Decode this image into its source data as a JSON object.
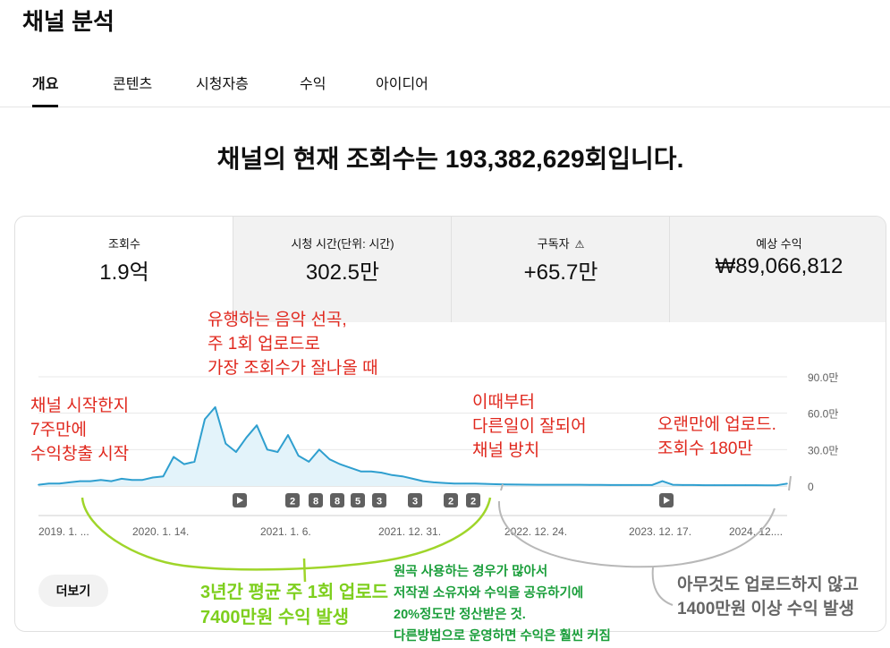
{
  "page": {
    "title": "채널 분석"
  },
  "tabs": [
    {
      "label": "개요",
      "active": true
    },
    {
      "label": "콘텐츠",
      "active": false
    },
    {
      "label": "시청자층",
      "active": false
    },
    {
      "label": "수익",
      "active": false
    },
    {
      "label": "아이디어",
      "active": false
    }
  ],
  "headline": "채널의 현재 조회수는 193,382,629회입니다.",
  "metrics": [
    {
      "label": "조회수",
      "value": "1.9억"
    },
    {
      "label": "시청 시간(단위: 시간)",
      "value": "302.5만"
    },
    {
      "label": "구독자",
      "value": "+65.7만",
      "icon": "warning-icon"
    },
    {
      "label": "예상 수익",
      "value": "₩89,066,812"
    }
  ],
  "more_button": "더보기",
  "colors": {
    "line": "#2f9fcf",
    "fill": "#e3f3fa",
    "red_note": "#e0281e",
    "lime_note": "#7ecf1e",
    "green_note": "#1a9e3a",
    "grey_note": "#666666"
  },
  "chart_data": {
    "type": "area",
    "series": [
      {
        "x": [
          "2019-01",
          "2019-02",
          "2019-03",
          "2019-04",
          "2019-05",
          "2019-06",
          "2019-07",
          "2019-08",
          "2019-09",
          "2019-10",
          "2019-11",
          "2019-12",
          "2020-01",
          "2020-02",
          "2020-03",
          "2020-04",
          "2020-05",
          "2020-06",
          "2020-07",
          "2020-08",
          "2020-09",
          "2020-10",
          "2020-11",
          "2020-12",
          "2021-01",
          "2021-02",
          "2021-03",
          "2021-04",
          "2021-05",
          "2021-06",
          "2021-07",
          "2021-08",
          "2021-09",
          "2021-10",
          "2021-11",
          "2021-12",
          "2022-01",
          "2022-02",
          "2022-03",
          "2022-04",
          "2022-05",
          "2022-06",
          "2022-07",
          "2022-08",
          "2022-09",
          "2022-10",
          "2022-11",
          "2022-12",
          "2023-01",
          "2023-02",
          "2023-03",
          "2023-04",
          "2023-05",
          "2023-06",
          "2023-07",
          "2023-08",
          "2023-09",
          "2023-10",
          "2023-11",
          "2023-12",
          "2024-01",
          "2024-02",
          "2024-03",
          "2024-04",
          "2024-05",
          "2024-06",
          "2024-07",
          "2024-08",
          "2024-09",
          "2024-10",
          "2024-11",
          "2024-12",
          "2025-01"
        ],
        "values": [
          1,
          2,
          2,
          3,
          4,
          4,
          5,
          4,
          6,
          5,
          5,
          7,
          8,
          24,
          18,
          20,
          55,
          65,
          35,
          28,
          40,
          50,
          30,
          28,
          42,
          25,
          20,
          30,
          22,
          18,
          15,
          12,
          12,
          11,
          9,
          8,
          6,
          4,
          3,
          2.5,
          2,
          2,
          2,
          1.8,
          1.5,
          1.3,
          1.2,
          1.1,
          1,
          1,
          1,
          1,
          1,
          0.9,
          0.9,
          0.8,
          0.8,
          0.8,
          0.8,
          0.8,
          4,
          1,
          0.8,
          0.8,
          0.7,
          0.7,
          0.7,
          0.7,
          0.7,
          0.7,
          0.6,
          0.6,
          2
        ]
      }
    ],
    "yticks": [
      "90.0만",
      "60.0만",
      "30.0만",
      "0"
    ],
    "ylim": [
      0,
      90
    ],
    "xticks": [
      "2019. 1. ...",
      "2020. 1. 14.",
      "2021. 1. 6.",
      "2021. 12. 31.",
      "2022. 12. 24.",
      "2023. 12. 17.",
      "2024. 12...."
    ],
    "markers": [
      {
        "type": "play",
        "label": ""
      },
      {
        "type": "count",
        "label": "2"
      },
      {
        "type": "count",
        "label": "8"
      },
      {
        "type": "count",
        "label": "8"
      },
      {
        "type": "count",
        "label": "5"
      },
      {
        "type": "count",
        "label": "3"
      },
      {
        "type": "count",
        "label": "3"
      },
      {
        "type": "count",
        "label": "2"
      },
      {
        "type": "count",
        "label": "2"
      },
      {
        "type": "play",
        "label": ""
      }
    ],
    "grid": true
  },
  "annotations": {
    "start": [
      "채널 시작한지",
      "7주만에",
      "수익창출 시작"
    ],
    "peak": [
      "유행하는 음악 선곡,",
      "주 1회 업로드로",
      "가장 조회수가 잘나올 때"
    ],
    "abandon": [
      "이때부터",
      "다른일이 잘되어",
      "채널 방치"
    ],
    "upload": [
      "오랜만에 업로드.",
      "조회수 180만"
    ],
    "three_years": [
      "3년간 평균 주 1회 업로드",
      "7400만원 수익 발생"
    ],
    "copyright": [
      "원곡 사용하는 경우가 많아서",
      "저작권 소유자와 수익을 공유하기에",
      "20%정도만 정산받은 것.",
      "다른방법으로 운영하면 수익은 훨씬 커짐"
    ],
    "idle": [
      "아무것도 업로드하지 않고",
      "1400만원 이상 수익 발생"
    ]
  }
}
